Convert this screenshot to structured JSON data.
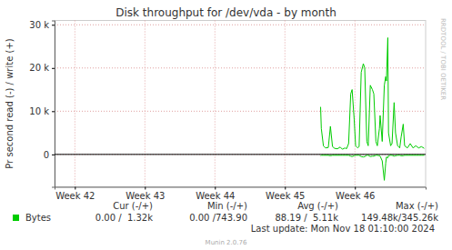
{
  "chart_data": {
    "type": "line",
    "title": "Disk throughput for /dev/vda - by month",
    "y_label": "Pr second read (-) / write (+)",
    "x": [
      45.51,
      45.52,
      45.55,
      45.58,
      45.62,
      45.65,
      45.68,
      45.71,
      45.75,
      45.79,
      45.82,
      45.86,
      45.88,
      45.91,
      45.94,
      45.96,
      45.99,
      46.01,
      46.04,
      46.06,
      46.09,
      46.12,
      46.14,
      46.17,
      46.19,
      46.22,
      46.25,
      46.27,
      46.3,
      46.32,
      46.35,
      46.36,
      46.39,
      46.42,
      46.44,
      46.45,
      46.47,
      46.48,
      46.51,
      46.53,
      46.56,
      46.58,
      46.61,
      46.64,
      46.66,
      46.69,
      46.71,
      46.75,
      46.79,
      46.83,
      46.87,
      46.91,
      46.95,
      46.99
    ],
    "series": [
      {
        "name": "Bytes",
        "color": "#00cc00",
        "values": [
          11000,
          6000,
          2000,
          1500,
          1600,
          6500,
          1800,
          1400,
          1300,
          1700,
          1200,
          1500,
          1300,
          2500,
          14000,
          15000,
          8000,
          2000,
          1500,
          1800,
          19000,
          21000,
          20000,
          3000,
          2000,
          16000,
          15000,
          14000,
          3000,
          2000,
          6000,
          9000,
          3000,
          16000,
          18000,
          17000,
          27000,
          5000,
          2000,
          2500,
          12000,
          5000,
          2000,
          1500,
          4000,
          7000,
          2000,
          1500,
          2500,
          1500,
          2000,
          1500,
          1800,
          1400
        ],
        "read_values": [
          -300,
          -200,
          -200,
          -200,
          -200,
          -300,
          -200,
          -200,
          -200,
          -200,
          -200,
          -200,
          -200,
          -200,
          -400,
          -500,
          -300,
          -200,
          -200,
          -200,
          -500,
          -600,
          -500,
          -200,
          -200,
          -500,
          -400,
          -400,
          -200,
          -200,
          -300,
          -400,
          -1500,
          -6000,
          -2000,
          -600,
          -800,
          -300,
          -200,
          -200,
          -400,
          -300,
          -200,
          -200,
          -300,
          -300,
          -200,
          -200,
          -200,
          -200,
          -200,
          -200,
          -200,
          -200
        ]
      }
    ],
    "xlim": [
      41.71,
      47.01
    ],
    "xticks": [
      {
        "value": 42,
        "label": "Week 42"
      },
      {
        "value": 43,
        "label": "Week 43"
      },
      {
        "value": 44,
        "label": "Week 44"
      },
      {
        "value": 45,
        "label": "Week 45"
      },
      {
        "value": 46,
        "label": "Week 46"
      }
    ],
    "ylim": [
      -7500,
      31000
    ],
    "yticks": [
      0,
      {
        "value": 10000,
        "label": "10 k"
      },
      {
        "value": 20000,
        "label": "20 k"
      },
      {
        "value": 30000,
        "label": "30 k"
      }
    ],
    "grid": true,
    "legend": "bottom",
    "legend_table": {
      "headers": [
        "Cur (-/+)",
        "Min (-/+)",
        "Avg (-/+)",
        "Max (-/+)"
      ],
      "cells": [
        "0.00 /  1.32k",
        "0.00 /743.90",
        "88.19 /  5.11k",
        "149.48k/345.26k"
      ]
    },
    "last_update": "Last update: Mon Nov 18 01:10:00 2024",
    "footer": "Munin 2.0.76",
    "watermark": "RRDTOOL / TOBI OETIKER"
  }
}
